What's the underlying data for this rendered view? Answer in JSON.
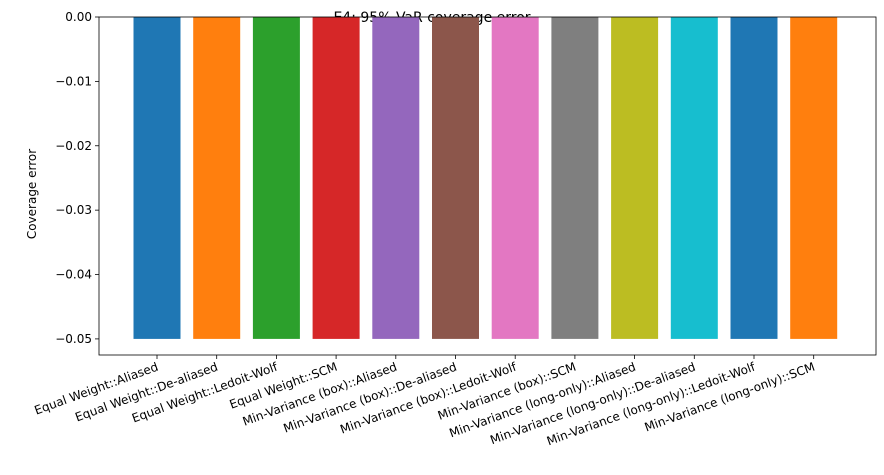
{
  "chart_data": {
    "type": "bar",
    "title": "E4: 95% VaR coverage error",
    "xlabel": "",
    "ylabel": "Coverage error",
    "ylim": [
      -0.0525,
      0.0
    ],
    "yticks": [
      "0.00",
      "−0.01",
      "−0.02",
      "−0.03",
      "−0.04",
      "−0.05"
    ],
    "ytick_values": [
      0.0,
      -0.01,
      -0.02,
      -0.03,
      -0.04,
      -0.05
    ],
    "grid": false,
    "legend": "none",
    "categories": [
      "Equal Weight::Aliased",
      "Equal Weight::De-aliased",
      "Equal Weight::Ledoit-Wolf",
      "Equal Weight::SCM",
      "Min-Variance (box)::Aliased",
      "Min-Variance (box)::De-aliased",
      "Min-Variance (box)::Ledoit-Wolf",
      "Min-Variance (box)::SCM",
      "Min-Variance (long-only)::Aliased",
      "Min-Variance (long-only)::De-aliased",
      "Min-Variance (long-only)::Ledoit-Wolf",
      "Min-Variance (long-only)::SCM"
    ],
    "values": [
      -0.05,
      -0.05,
      -0.05,
      -0.05,
      -0.05,
      -0.05,
      -0.05,
      -0.05,
      -0.05,
      -0.05,
      -0.05,
      -0.05
    ],
    "colors": [
      "#1f77b4",
      "#ff7f0e",
      "#2ca02c",
      "#d62728",
      "#9467bd",
      "#8c564b",
      "#e377c2",
      "#7f7f7f",
      "#bcbd22",
      "#17becf",
      "#1f77b4",
      "#ff7f0e"
    ]
  }
}
